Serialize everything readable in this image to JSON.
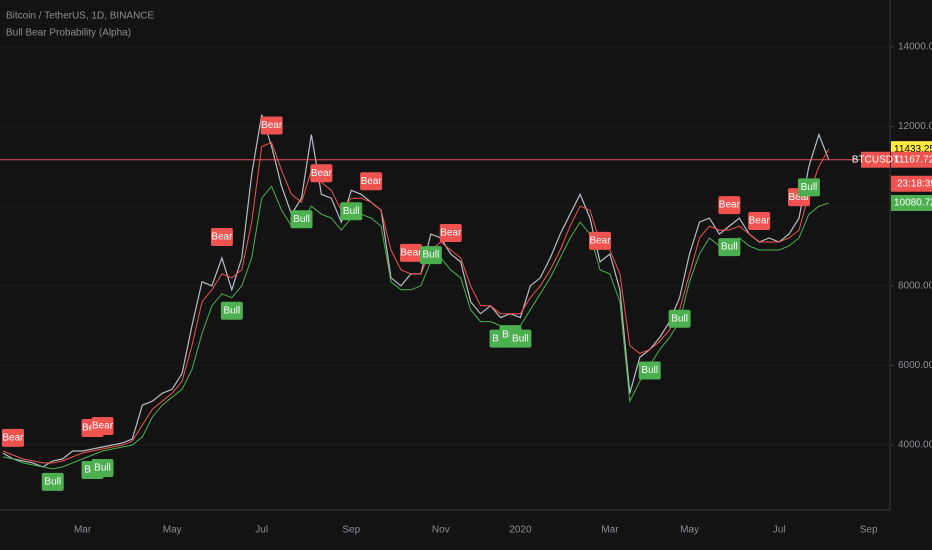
{
  "chart_data": {
    "type": "line",
    "title": "Bitcoin / TetherUS, 1D, BINANCE",
    "subtitle": "Bull Bear Probability (Alpha)",
    "categories": [
      null,
      null,
      null,
      null,
      null,
      null,
      null,
      null,
      "Mar",
      null,
      null,
      null,
      null,
      null,
      null,
      null,
      null,
      "May",
      null,
      null,
      null,
      null,
      null,
      null,
      null,
      null,
      "Jul",
      null,
      null,
      null,
      null,
      null,
      null,
      null,
      null,
      "Sep",
      null,
      null,
      null,
      null,
      null,
      null,
      null,
      null,
      "Nov",
      null,
      null,
      null,
      null,
      null,
      null,
      null,
      "2020",
      null,
      null,
      null,
      null,
      null,
      null,
      null,
      null,
      "Mar",
      null,
      null,
      null,
      null,
      null,
      null,
      null,
      "May",
      null,
      null,
      null,
      null,
      null,
      null,
      null,
      null,
      "Jul",
      null,
      null,
      null,
      null,
      null,
      null,
      null,
      null,
      "Sep"
    ],
    "series": [
      {
        "color": "#b8bcc4",
        "values": [
          3800,
          3650,
          3600,
          3550,
          3450,
          3600,
          3650,
          3850,
          3850,
          3900,
          3950,
          4000,
          4050,
          4150,
          5000,
          5100,
          5300,
          5400,
          5800,
          7000,
          8100,
          8000,
          8700,
          7900,
          8700,
          10800,
          12300,
          11500,
          10500,
          9800,
          10200,
          11800,
          10300,
          10200,
          9600,
          10400,
          10300,
          10100,
          9900,
          8200,
          8000,
          8300,
          8300,
          9300,
          9200,
          8800,
          8600,
          7600,
          7300,
          7500,
          7200,
          7300,
          7200,
          8000,
          8200,
          8700,
          9300,
          9800,
          10300,
          9700,
          8600,
          8800,
          7900,
          5300,
          6200,
          6400,
          6700,
          7100,
          7700,
          8800,
          9600,
          9700,
          9300,
          9500,
          9700,
          9300,
          9100,
          9200,
          9100,
          9300,
          9700,
          11000,
          11800,
          11167.72,
          null,
          null,
          null,
          null
        ]
      },
      {
        "color": "#4caf50",
        "values": [
          3700,
          3650,
          3550,
          3500,
          3450,
          3400,
          3450,
          3550,
          3650,
          3750,
          3850,
          3900,
          3950,
          4000,
          4200,
          4700,
          5000,
          5200,
          5400,
          5900,
          6800,
          7500,
          7800,
          7700,
          8000,
          8700,
          10200,
          10500,
          9900,
          9500,
          9600,
          10000,
          9800,
          9700,
          9400,
          9700,
          9800,
          9700,
          9500,
          8100,
          7900,
          7900,
          8000,
          8600,
          8700,
          8400,
          8200,
          7400,
          7100,
          7100,
          7000,
          7000,
          7000,
          7400,
          7800,
          8200,
          8700,
          9200,
          9600,
          9300,
          8400,
          8300,
          7600,
          5100,
          5600,
          6000,
          6400,
          6700,
          7100,
          8100,
          8800,
          9200,
          9000,
          9100,
          9200,
          9000,
          8900,
          8900,
          8900,
          9000,
          9200,
          9800,
          10000,
          10080.72,
          null,
          null,
          null,
          null
        ]
      },
      {
        "color": "#ef5350",
        "values": [
          3850,
          3750,
          3650,
          3600,
          3550,
          3550,
          3600,
          3700,
          3800,
          3850,
          3900,
          3950,
          4000,
          4100,
          4500,
          4900,
          5100,
          5300,
          5600,
          6500,
          7600,
          7900,
          8300,
          8200,
          8400,
          9600,
          11500,
          11600,
          10900,
          10300,
          10100,
          10900,
          10600,
          10400,
          9900,
          10200,
          10200,
          10100,
          9900,
          8900,
          8400,
          8300,
          8300,
          8900,
          9100,
          8900,
          8700,
          8000,
          7500,
          7500,
          7300,
          7300,
          7300,
          7700,
          8000,
          8400,
          8900,
          9500,
          10000,
          9900,
          9100,
          8900,
          8300,
          6500,
          6300,
          6400,
          6600,
          6900,
          7400,
          8300,
          9200,
          9500,
          9400,
          9400,
          9500,
          9300,
          9100,
          9100,
          9100,
          9200,
          9400,
          10300,
          11000,
          11433.25,
          null,
          null,
          null,
          null
        ]
      }
    ],
    "ylim": [
      2367,
      15181
    ],
    "yticks": [
      {
        "value": 4000,
        "label": "4000.00"
      },
      {
        "value": 6000,
        "label": "6000.00"
      },
      {
        "value": 8000,
        "label": "8000.00"
      },
      {
        "value": 10000,
        "label": "10000.00"
      },
      {
        "value": 12000,
        "label": "12000.00"
      },
      {
        "value": 14000,
        "label": "14000.00"
      }
    ],
    "signals": [
      {
        "text": "Bear",
        "at": 1
      },
      {
        "text": "Bear",
        "at": 9
      },
      {
        "text": "Bear",
        "at": 10
      },
      {
        "text": "Bear",
        "at": 22
      },
      {
        "text": "Bear",
        "at": 27
      },
      {
        "text": "Bear",
        "at": 32
      },
      {
        "text": "Bear",
        "at": 37
      },
      {
        "text": "Bear",
        "at": 41
      },
      {
        "text": "Bear",
        "at": 45
      },
      {
        "text": "Bear",
        "at": 60
      },
      {
        "text": "Bear",
        "at": 73
      },
      {
        "text": "Bear",
        "at": 76
      },
      {
        "text": "Bear",
        "at": 80
      },
      {
        "text": "Bull",
        "at": 5
      },
      {
        "text": "Bull",
        "at": 9
      },
      {
        "text": "Bull",
        "at": 10
      },
      {
        "text": "Bull",
        "at": 23
      },
      {
        "text": "Bull",
        "at": 30
      },
      {
        "text": "Bull",
        "at": 35
      },
      {
        "text": "Bull",
        "at": 43
      },
      {
        "text": "Bull",
        "at": 50
      },
      {
        "text": "Bull",
        "at": 51
      },
      {
        "text": "Bull",
        "at": 52
      },
      {
        "text": "Bull",
        "at": 65
      },
      {
        "text": "Bull",
        "at": 68
      },
      {
        "text": "Bull",
        "at": 73
      },
      {
        "text": "Bull",
        "at": 81
      }
    ],
    "symbol": "BTCUSDT",
    "last_price": {
      "value": 11167.72,
      "label": "11167.72",
      "color": "#ef5350"
    },
    "countdown": "23:18:39",
    "indicator_labels": [
      {
        "value": 11433.25,
        "label": "11433.25",
        "color": "#ffeb3b"
      },
      {
        "value": 10080.72,
        "label": "10080.72",
        "color": "#4caf50"
      }
    ]
  }
}
